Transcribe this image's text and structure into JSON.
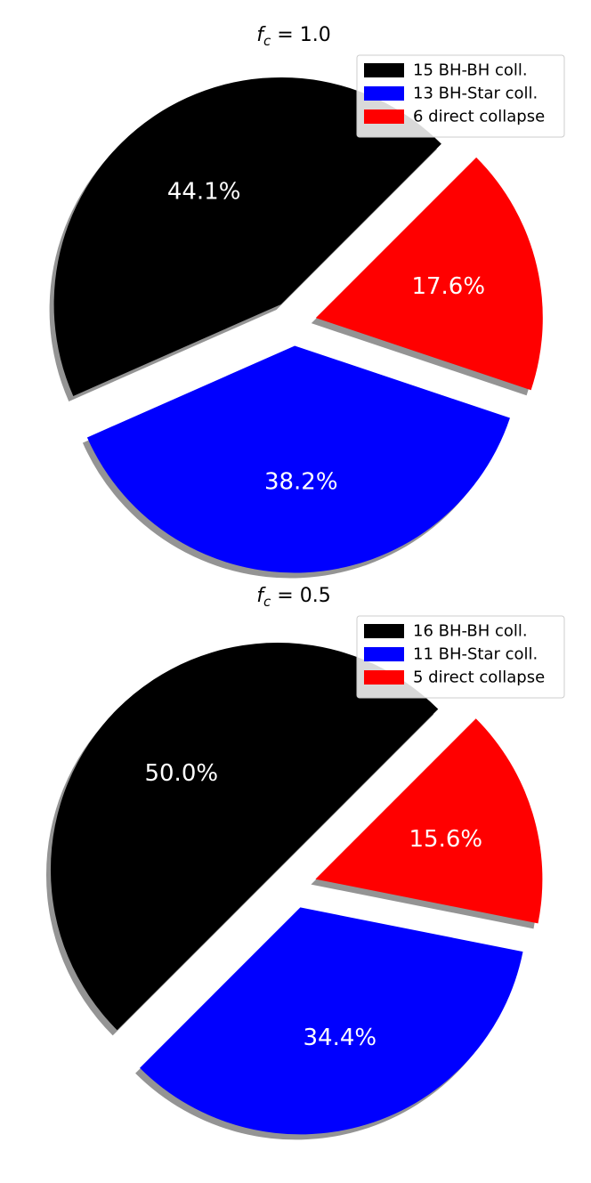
{
  "chart_data": [
    {
      "type": "pie",
      "title": {
        "symbol": "f",
        "subscript": "c",
        "rest": " = 1.0"
      },
      "startangle": 45,
      "explode_offset": 0.1,
      "shadow": true,
      "legend_position": "top-right",
      "slices": [
        {
          "label": "15 BH-BH coll.",
          "value": 15,
          "pct": "44.1%",
          "color": "#000000"
        },
        {
          "label": "13 BH-Star coll.",
          "value": 13,
          "pct": "38.2%",
          "color": "#0000ff"
        },
        {
          "label": "6 direct collapse",
          "value": 6,
          "pct": "17.6%",
          "color": "#ff0000"
        }
      ]
    },
    {
      "type": "pie",
      "title": {
        "symbol": "f",
        "subscript": "c",
        "rest": " = 0.5"
      },
      "startangle": 45,
      "explode_offset": 0.1,
      "shadow": true,
      "legend_position": "top-right",
      "slices": [
        {
          "label": "16 BH-BH coll.",
          "value": 16,
          "pct": "50.0%",
          "color": "#000000"
        },
        {
          "label": "11 BH-Star coll.",
          "value": 11,
          "pct": "34.4%",
          "color": "#0000ff"
        },
        {
          "label": "5 direct collapse",
          "value": 5,
          "pct": "15.6%",
          "color": "#ff0000"
        }
      ]
    }
  ]
}
